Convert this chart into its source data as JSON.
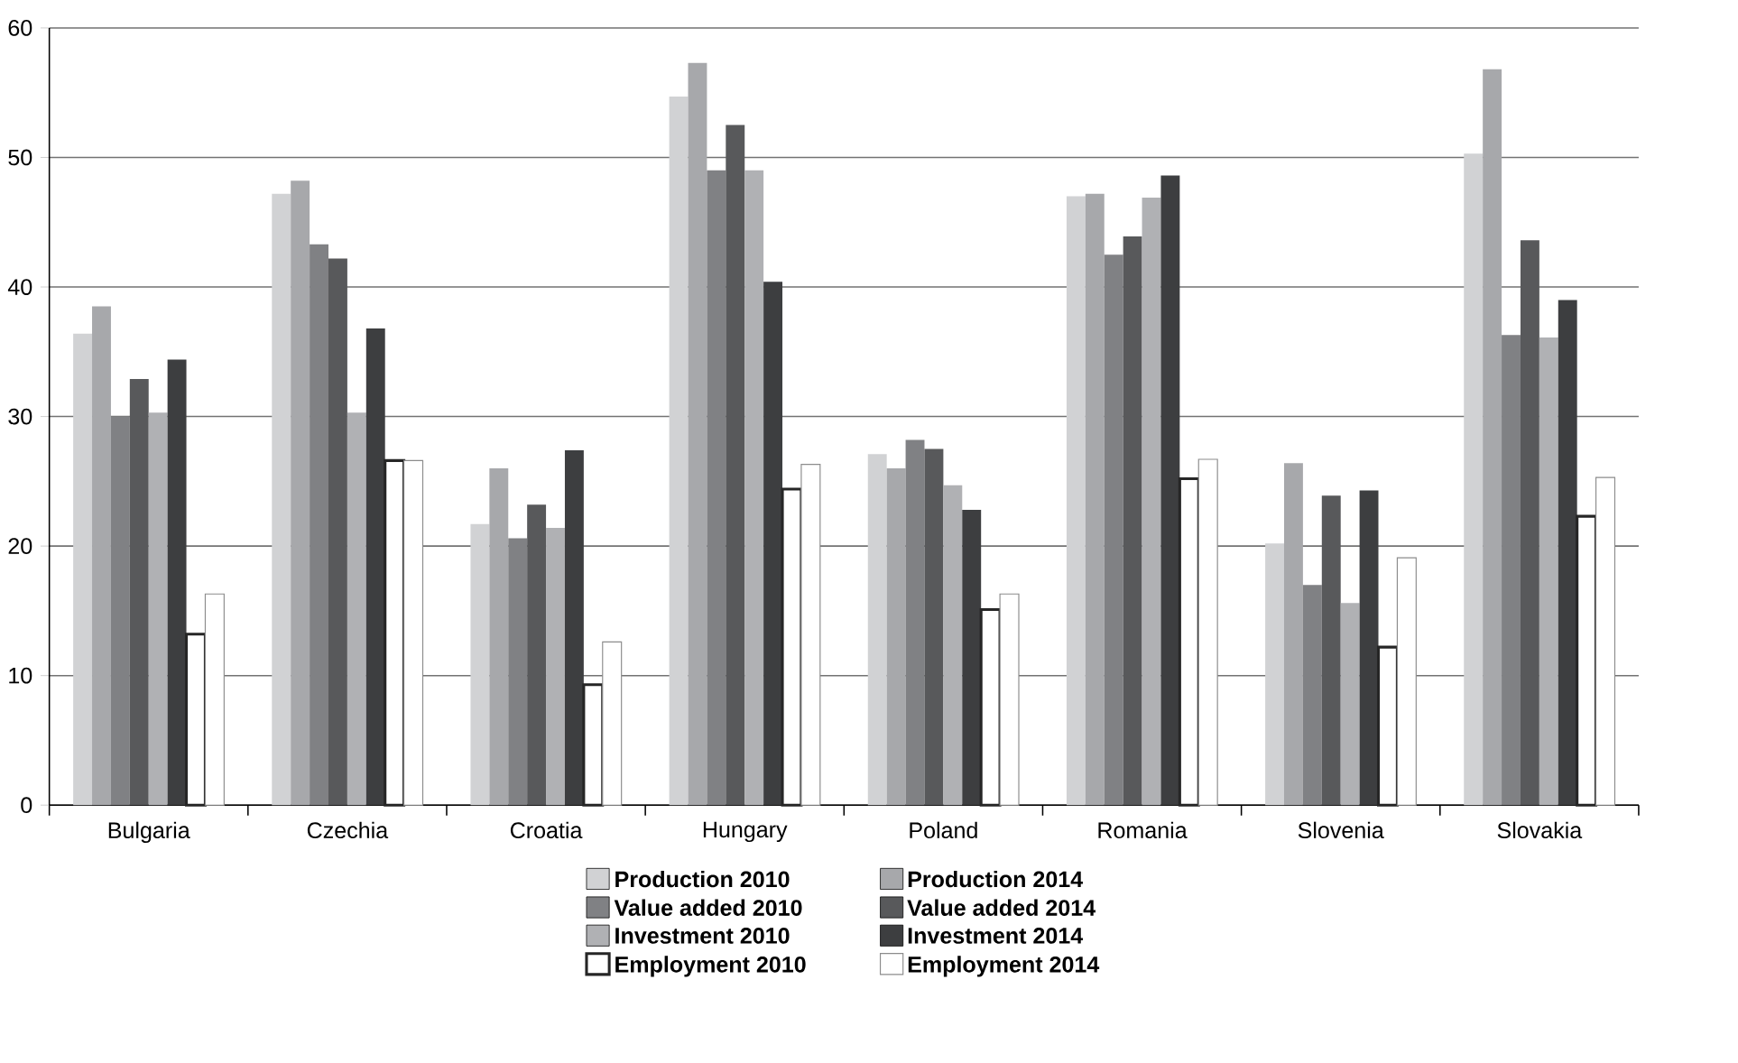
{
  "chart_data": {
    "type": "bar",
    "categories": [
      "Bulgaria",
      "Czechia",
      "Croatia",
      "Hungary",
      "Poland",
      "Romania",
      "Slovenia",
      "Slovakia"
    ],
    "series": [
      {
        "name": "Production 2010",
        "color": "#d1d2d4",
        "values": [
          36.4,
          47.2,
          21.7,
          54.7,
          27.1,
          47.0,
          20.2,
          50.3
        ]
      },
      {
        "name": "Production 2014",
        "color": "#a7a8ab",
        "values": [
          38.5,
          48.2,
          26.0,
          57.3,
          26.0,
          47.2,
          26.4,
          56.8
        ]
      },
      {
        "name": "Value added 2010",
        "color": "#808184",
        "values": [
          30.0,
          43.3,
          20.6,
          49.0,
          28.2,
          42.5,
          17.0,
          36.3
        ]
      },
      {
        "name": "Value added 2014",
        "color": "#58595b",
        "values": [
          32.9,
          42.2,
          23.2,
          52.5,
          27.5,
          43.9,
          23.9,
          43.6
        ]
      },
      {
        "name": "Investment 2010",
        "color": "#b0b1b4",
        "values": [
          30.3,
          30.3,
          21.4,
          49.0,
          24.7,
          46.9,
          15.6,
          36.1
        ]
      },
      {
        "name": "Investment 2014",
        "color": "#3d3e40",
        "values": [
          34.4,
          36.8,
          27.4,
          40.4,
          22.8,
          48.6,
          24.3,
          39.0
        ]
      },
      {
        "name": "Employment 2010",
        "color": "#ffffff",
        "values": [
          13.2,
          26.6,
          9.3,
          24.4,
          15.1,
          25.2,
          12.2,
          22.3
        ]
      },
      {
        "name": "Employment 2014",
        "color": "#ffffff",
        "values": [
          16.3,
          26.6,
          12.6,
          26.3,
          16.3,
          26.7,
          19.1,
          25.3
        ]
      }
    ],
    "ylim": [
      0,
      60
    ],
    "yticks": [
      0,
      10,
      20,
      30,
      40,
      50,
      60
    ],
    "grid": "y",
    "legend": "bottom"
  }
}
